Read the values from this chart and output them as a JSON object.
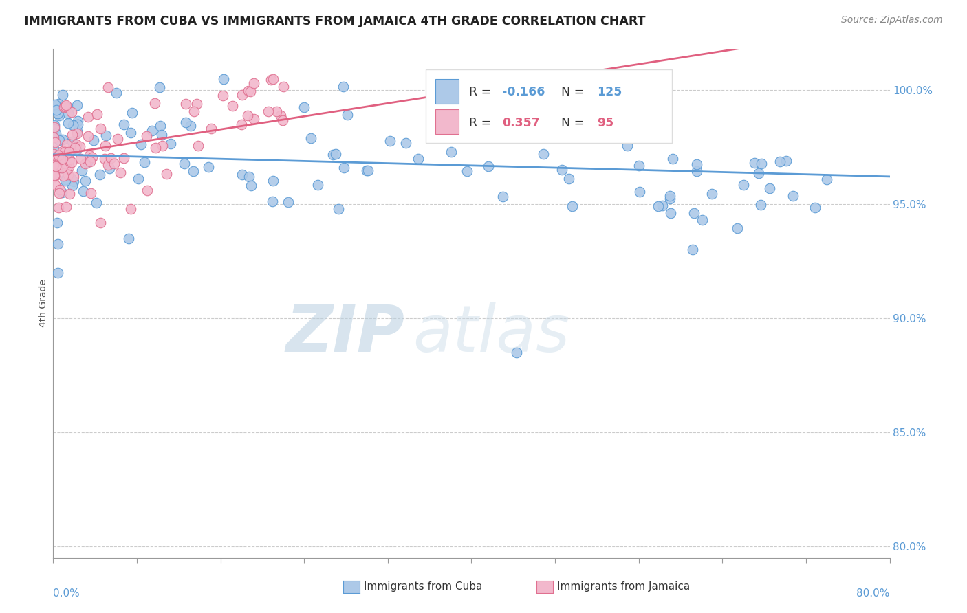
{
  "title": "IMMIGRANTS FROM CUBA VS IMMIGRANTS FROM JAMAICA 4TH GRADE CORRELATION CHART",
  "source_text": "Source: ZipAtlas.com",
  "ylabel": "4th Grade",
  "xmin": 0.0,
  "xmax": 80.0,
  "ymin": 79.5,
  "ymax": 101.8,
  "yticks": [
    80.0,
    85.0,
    90.0,
    95.0,
    100.0
  ],
  "r_cuba": -0.166,
  "n_cuba": 125,
  "r_jamaica": 0.357,
  "n_jamaica": 95,
  "color_cuba_fill": "#adc9e8",
  "color_cuba_edge": "#5b9bd5",
  "color_jamaica_fill": "#f2b8cc",
  "color_jamaica_edge": "#e07090",
  "color_cuba_line": "#5b9bd5",
  "color_jamaica_line": "#e06080",
  "legend_r_cuba_color": "#5b9bd5",
  "legend_r_jamaica_color": "#e06080",
  "watermark_zip": "ZIP",
  "watermark_atlas": "atlas",
  "background_color": "#ffffff",
  "grid_color": "#cccccc",
  "scatter_size": 110,
  "seed": 42
}
